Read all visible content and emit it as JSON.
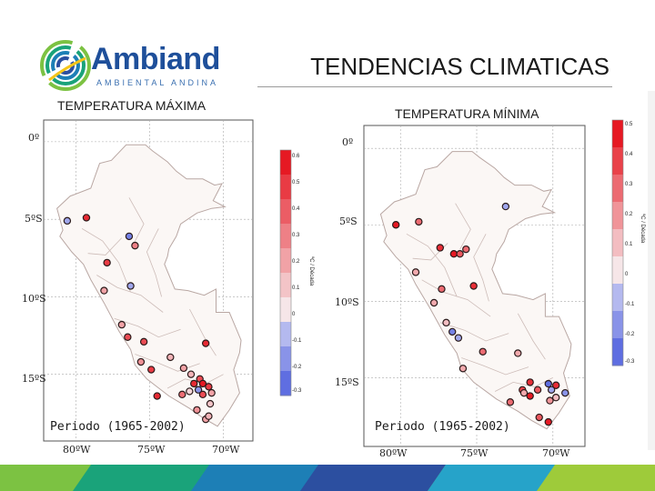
{
  "header": {
    "brand_name": "Ambiand",
    "brand_tagline": "AMBIENTAL ANDINA",
    "slide_title": "TENDENCIAS CLIMATICAS"
  },
  "colors": {
    "brand_blue": "#1e4f9a",
    "footer_stripes": [
      "#7cc242",
      "#1aa37a",
      "#1d7fb6",
      "#2c4fa0",
      "#26a3c9",
      "#9ecb3a"
    ]
  },
  "chart_data": [
    {
      "type": "scatter",
      "title": "TEMPERATURA MÁXIMA",
      "period_label": "Periodo (1965-2002)",
      "y_tick_labels": [
        "0º",
        "5ºS",
        "10ºS",
        "15ºS"
      ],
      "x_tick_labels": [
        "80ºW",
        "75ºW",
        "70ºW"
      ],
      "colorbar": {
        "label": "ºC / Década",
        "ticks": [
          "0.6",
          "0.5",
          "0.4",
          "0.3",
          "0.2",
          "0.1",
          "0",
          "-0.1",
          "-0.2",
          "-0.3"
        ],
        "range": [
          -0.3,
          0.6
        ]
      },
      "points": [
        {
          "lon": -80.6,
          "lat": -5.1,
          "trend": -0.15
        },
        {
          "lon": -79.3,
          "lat": -4.9,
          "trend": 0.55
        },
        {
          "lon": -76.4,
          "lat": -6.1,
          "trend": -0.25
        },
        {
          "lon": -77.9,
          "lat": -7.8,
          "trend": 0.5
        },
        {
          "lon": -76.0,
          "lat": -6.7,
          "trend": 0.3
        },
        {
          "lon": -76.3,
          "lat": -9.3,
          "trend": -0.15
        },
        {
          "lon": -78.1,
          "lat": -9.6,
          "trend": 0.2
        },
        {
          "lon": -76.9,
          "lat": -11.8,
          "trend": 0.2
        },
        {
          "lon": -76.5,
          "lat": -12.6,
          "trend": 0.45
        },
        {
          "lon": -75.4,
          "lat": -12.9,
          "trend": 0.45
        },
        {
          "lon": -71.2,
          "lat": -13.0,
          "trend": 0.55
        },
        {
          "lon": -75.6,
          "lat": -14.2,
          "trend": 0.25
        },
        {
          "lon": -74.9,
          "lat": -14.7,
          "trend": 0.5
        },
        {
          "lon": -73.6,
          "lat": -13.9,
          "trend": 0.15
        },
        {
          "lon": -72.7,
          "lat": -14.6,
          "trend": 0.2
        },
        {
          "lon": -72.2,
          "lat": -15.0,
          "trend": 0.15
        },
        {
          "lon": -71.6,
          "lat": -15.3,
          "trend": 0.45
        },
        {
          "lon": -72.0,
          "lat": -15.6,
          "trend": 0.55
        },
        {
          "lon": -71.4,
          "lat": -15.6,
          "trend": 0.6
        },
        {
          "lon": -71.0,
          "lat": -15.8,
          "trend": 0.5
        },
        {
          "lon": -71.7,
          "lat": -16.0,
          "trend": -0.2
        },
        {
          "lon": -72.3,
          "lat": -16.1,
          "trend": 0.05
        },
        {
          "lon": -72.8,
          "lat": -16.3,
          "trend": 0.35
        },
        {
          "lon": -71.4,
          "lat": -16.3,
          "trend": 0.45
        },
        {
          "lon": -70.8,
          "lat": -16.2,
          "trend": 0.2
        },
        {
          "lon": -74.5,
          "lat": -16.4,
          "trend": 0.55
        },
        {
          "lon": -70.9,
          "lat": -16.9,
          "trend": 0.1
        },
        {
          "lon": -71.8,
          "lat": -17.3,
          "trend": 0.25
        },
        {
          "lon": -71.2,
          "lat": -17.9,
          "trend": 0.2
        },
        {
          "lon": -71.0,
          "lat": -17.7,
          "trend": 0.15
        }
      ]
    },
    {
      "type": "scatter",
      "title": "TEMPERATURA MÍNIMA",
      "period_label": "Periodo (1965-2002)",
      "y_tick_labels": [
        "0º",
        "5ºS",
        "10ºS",
        "15ºS"
      ],
      "x_tick_labels": [
        "80ºW",
        "75ºW",
        "70ºW"
      ],
      "colorbar": {
        "label": "ºC / Década",
        "ticks": [
          "0.5",
          "0.4",
          "0.3",
          "0.2",
          "0.1",
          "0",
          "-0.1",
          "-0.2",
          "-0.3"
        ],
        "range": [
          -0.3,
          0.5
        ]
      },
      "points": [
        {
          "lon": -80.3,
          "lat": -5.0,
          "trend": 0.5
        },
        {
          "lon": -78.8,
          "lat": -4.8,
          "trend": 0.3
        },
        {
          "lon": -73.1,
          "lat": -3.8,
          "trend": -0.15
        },
        {
          "lon": -77.4,
          "lat": -6.5,
          "trend": 0.45
        },
        {
          "lon": -76.5,
          "lat": -6.9,
          "trend": 0.5
        },
        {
          "lon": -76.1,
          "lat": -6.9,
          "trend": 0.35
        },
        {
          "lon": -75.7,
          "lat": -6.6,
          "trend": 0.3
        },
        {
          "lon": -79.0,
          "lat": -8.1,
          "trend": 0.15
        },
        {
          "lon": -77.3,
          "lat": -9.2,
          "trend": 0.3
        },
        {
          "lon": -75.2,
          "lat": -9.0,
          "trend": 0.45
        },
        {
          "lon": -77.8,
          "lat": -10.1,
          "trend": 0.15
        },
        {
          "lon": -77.0,
          "lat": -11.4,
          "trend": 0.1
        },
        {
          "lon": -76.6,
          "lat": -12.0,
          "trend": -0.25
        },
        {
          "lon": -76.2,
          "lat": -12.4,
          "trend": -0.15
        },
        {
          "lon": -74.6,
          "lat": -13.3,
          "trend": 0.3
        },
        {
          "lon": -72.3,
          "lat": -13.4,
          "trend": 0.15
        },
        {
          "lon": -75.9,
          "lat": -14.4,
          "trend": 0.15
        },
        {
          "lon": -71.5,
          "lat": -15.3,
          "trend": 0.45
        },
        {
          "lon": -70.3,
          "lat": -15.4,
          "trend": -0.3
        },
        {
          "lon": -69.8,
          "lat": -15.5,
          "trend": 0.45
        },
        {
          "lon": -70.1,
          "lat": -15.8,
          "trend": -0.15
        },
        {
          "lon": -71.0,
          "lat": -15.8,
          "trend": 0.35
        },
        {
          "lon": -72.0,
          "lat": -15.8,
          "trend": 0.4
        },
        {
          "lon": -69.2,
          "lat": -16.0,
          "trend": -0.2
        },
        {
          "lon": -71.5,
          "lat": -16.2,
          "trend": 0.5
        },
        {
          "lon": -71.9,
          "lat": -16.0,
          "trend": 0.15
        },
        {
          "lon": -72.8,
          "lat": -16.6,
          "trend": 0.3
        },
        {
          "lon": -70.2,
          "lat": -16.5,
          "trend": 0.2
        },
        {
          "lon": -69.8,
          "lat": -16.3,
          "trend": 0.1
        },
        {
          "lon": -70.9,
          "lat": -17.6,
          "trend": 0.35
        },
        {
          "lon": -70.3,
          "lat": -17.9,
          "trend": 0.5
        }
      ]
    }
  ]
}
